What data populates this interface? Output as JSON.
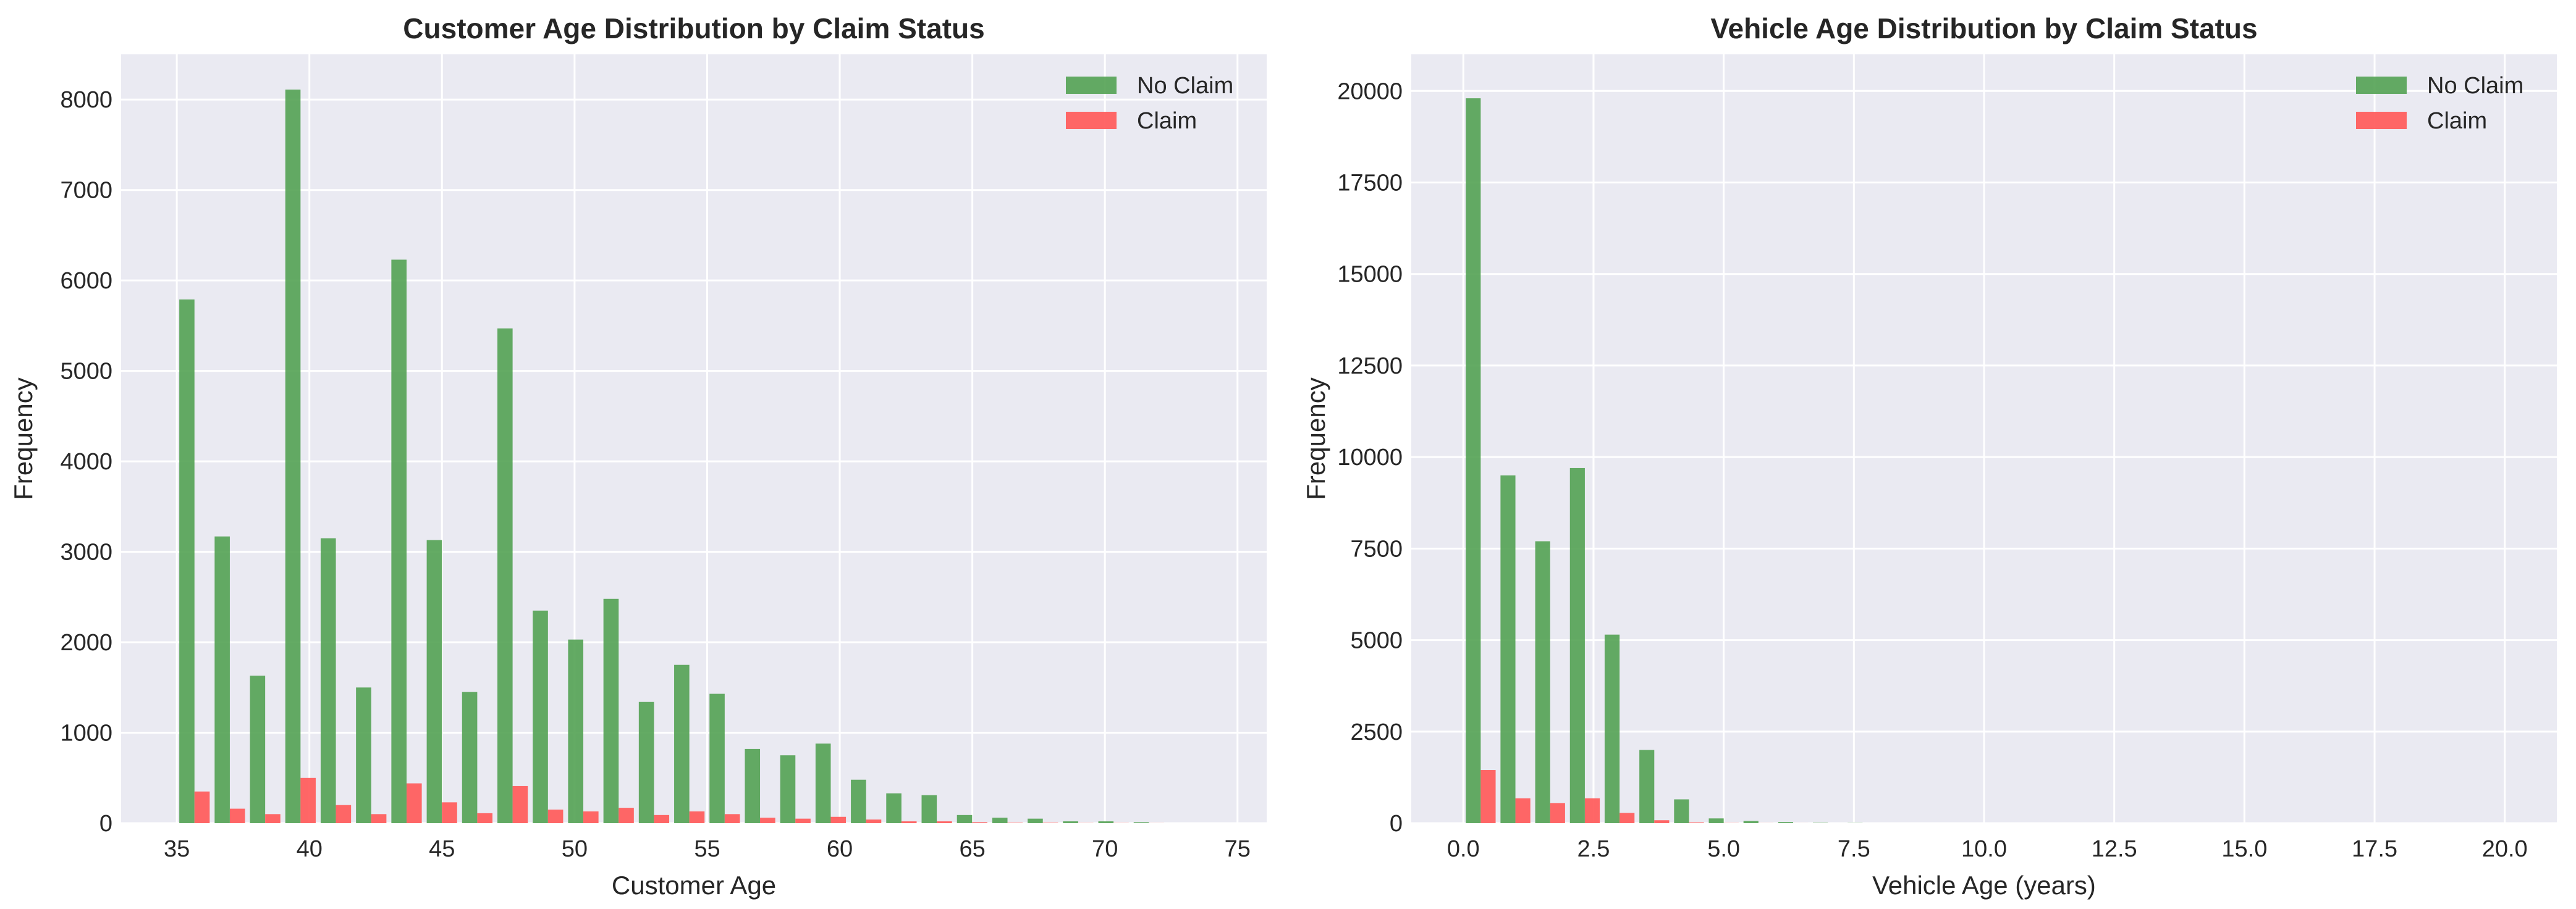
{
  "colors": {
    "no_claim": "#4f9f4f",
    "claim": "#ff5a5a",
    "plot_bg": "#eaeaf2",
    "grid": "#ffffff"
  },
  "chart_data": [
    {
      "type": "bar",
      "title": "Customer Age Distribution by Claim Status",
      "xlabel": "Customer Age",
      "ylabel": "Frequency",
      "xlim": [
        32.9,
        76.1
      ],
      "ylim": [
        0,
        8500
      ],
      "xticks": [
        35,
        40,
        45,
        50,
        55,
        60,
        65,
        70,
        75
      ],
      "yticks": [
        0,
        1000,
        2000,
        3000,
        4000,
        5000,
        6000,
        7000,
        8000
      ],
      "grid": true,
      "legend_position": "top-right",
      "bins": {
        "start": 35,
        "width": 1.333,
        "edges_label": "30 bins from 35 to 75"
      },
      "series": [
        {
          "name": "No Claim",
          "color": "#4f9f4f",
          "values": [
            5790,
            3170,
            1630,
            8110,
            3150,
            1500,
            6230,
            3130,
            1450,
            5470,
            2350,
            2030,
            2480,
            1340,
            1750,
            1430,
            820,
            750,
            880,
            480,
            330,
            310,
            90,
            60,
            50,
            20,
            20,
            10,
            0,
            0
          ]
        },
        {
          "name": "Claim",
          "color": "#ff5a5a",
          "values": [
            350,
            160,
            100,
            500,
            200,
            100,
            440,
            230,
            110,
            410,
            150,
            130,
            170,
            90,
            130,
            100,
            60,
            50,
            70,
            40,
            20,
            20,
            10,
            5,
            5,
            2,
            2,
            1,
            0,
            0
          ]
        }
      ]
    },
    {
      "type": "bar",
      "title": "Vehicle Age Distribution by Claim Status",
      "xlabel": "Vehicle Age (years)",
      "ylabel": "Frequency",
      "xlim": [
        -1.0,
        21.0
      ],
      "ylim": [
        0,
        21000
      ],
      "xticks": [
        0.0,
        2.5,
        5.0,
        7.5,
        10.0,
        12.5,
        15.0,
        17.5,
        20.0
      ],
      "yticks": [
        0,
        2500,
        5000,
        7500,
        10000,
        12500,
        15000,
        17500,
        20000
      ],
      "grid": true,
      "legend_position": "top-right",
      "bins": {
        "start": 0,
        "width": 0.6667,
        "edges_label": "30 bins from 0 to 20"
      },
      "series": [
        {
          "name": "No Claim",
          "color": "#4f9f4f",
          "values": [
            19800,
            9500,
            7700,
            9700,
            5150,
            2000,
            650,
            130,
            60,
            30,
            10,
            5,
            0,
            0,
            0,
            0,
            0,
            0,
            0,
            0,
            0,
            0,
            0,
            0,
            0,
            0,
            0,
            0,
            0,
            0
          ]
        },
        {
          "name": "Claim",
          "color": "#ff5a5a",
          "values": [
            1450,
            680,
            550,
            680,
            280,
            80,
            20,
            5,
            2,
            1,
            0,
            0,
            0,
            0,
            0,
            0,
            0,
            0,
            0,
            0,
            0,
            0,
            0,
            0,
            0,
            0,
            0,
            0,
            0,
            0
          ]
        }
      ]
    }
  ]
}
